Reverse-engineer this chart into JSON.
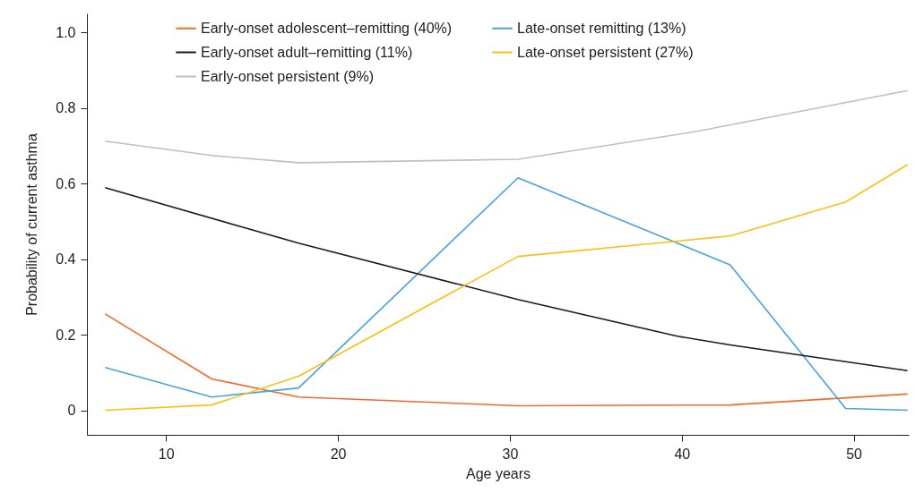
{
  "chart_data": {
    "type": "line",
    "xlabel": "Age years",
    "ylabel": "Probability of current asthma",
    "xlim": [
      5.4,
      53.2
    ],
    "ylim": [
      -0.065,
      1.05
    ],
    "xticks": [
      10,
      20,
      30,
      40,
      50
    ],
    "yticks": [
      0,
      0.2,
      0.4,
      0.6,
      0.8,
      {
        "value": 1,
        "label": "1.0"
      }
    ],
    "grid": false,
    "legend": "top",
    "series": [
      {
        "name": "Early-onset adolescent–remitting (40%)",
        "color": "#f26b2a",
        "x": [
          6.46,
          12.66,
          17.71,
          30.47,
          42.81,
          53.13
        ],
        "values": [
          0.255,
          0.083,
          0.035,
          0.012,
          0.014,
          0.043
        ]
      },
      {
        "name": "Late-onset remitting (13%)",
        "color": "#4aa3d8",
        "x": [
          6.46,
          12.66,
          17.71,
          30.47,
          42.81,
          49.53,
          53.13
        ],
        "values": [
          0.113,
          0.035,
          0.059,
          0.615,
          0.385,
          0.005,
          0
        ]
      },
      {
        "name": "Early-onset adult–remitting (11%)",
        "color": "#1a1a1a",
        "x": [
          6.46,
          17.71,
          30.47,
          39.74,
          42.81,
          53.13
        ],
        "values": [
          0.589,
          0.442,
          0.293,
          0.196,
          0.173,
          0.105
        ]
      },
      {
        "name": "Late-onset persistent (27%)",
        "color": "#fbbf16",
        "x": [
          6.46,
          12.66,
          17.71,
          30.47,
          42.81,
          49.53,
          53.13
        ],
        "values": [
          0,
          0.014,
          0.09,
          0.407,
          0.461,
          0.551,
          0.65
        ]
      },
      {
        "name": "Early-onset persistent (9%)",
        "color": "#bfbfbf",
        "x": [
          6.46,
          12.66,
          17.71,
          30.47,
          40.89,
          53.13
        ],
        "values": [
          0.712,
          0.674,
          0.655,
          0.664,
          0.738,
          0.846
        ]
      }
    ]
  }
}
